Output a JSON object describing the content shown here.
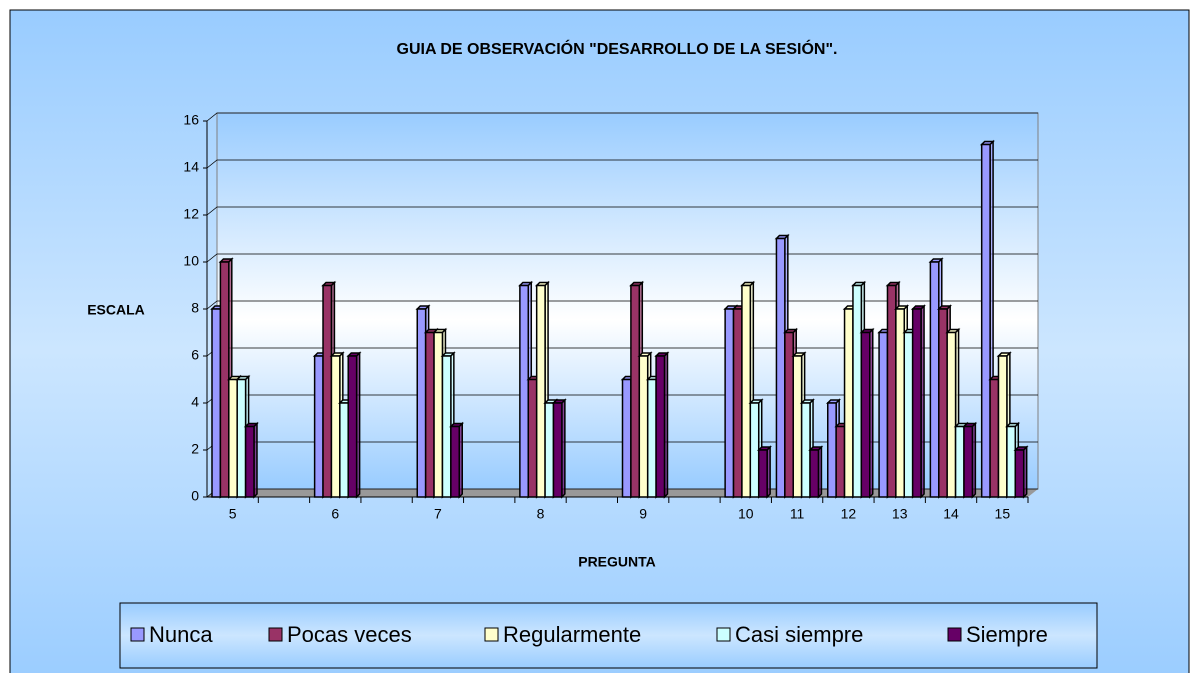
{
  "chart_data": {
    "type": "bar",
    "title": "GUIA DE OBSERVACIÓN  \"DESARROLLO DE LA SESIÓN\".",
    "y_label": "ESCALA",
    "x_label": "PREGUNTA",
    "categories": [
      "5",
      null,
      "6",
      null,
      "7",
      null,
      "8",
      null,
      "9",
      null,
      "10",
      "11",
      "12",
      "13",
      "14",
      "15"
    ],
    "series": [
      {
        "name": "Nunca",
        "color": "#9999ff",
        "values": [
          8,
          null,
          6,
          null,
          8,
          null,
          9,
          null,
          5,
          null,
          8,
          11,
          4,
          7,
          10,
          15
        ]
      },
      {
        "name": "Pocas veces",
        "color": "#993366",
        "values": [
          10,
          null,
          9,
          null,
          7,
          null,
          5,
          null,
          9,
          null,
          8,
          7,
          3,
          9,
          8,
          5
        ]
      },
      {
        "name": "Regularmente",
        "color": "#ffffcc",
        "values": [
          5,
          null,
          6,
          null,
          7,
          null,
          9,
          null,
          6,
          null,
          9,
          6,
          8,
          8,
          7,
          6
        ]
      },
      {
        "name": "Casi siempre",
        "color": "#ccffff",
        "values": [
          5,
          null,
          4,
          null,
          6,
          null,
          4,
          null,
          5,
          null,
          4,
          4,
          9,
          7,
          3,
          3
        ]
      },
      {
        "name": "Siempre",
        "color": "#660066",
        "values": [
          3,
          null,
          6,
          null,
          3,
          null,
          4,
          null,
          6,
          null,
          2,
          2,
          7,
          8,
          3,
          2
        ]
      }
    ],
    "ylim": [
      0,
      16
    ],
    "yticks": [
      0,
      2,
      4,
      6,
      8,
      10,
      12,
      14,
      16
    ],
    "grid": true,
    "legend": "bottom"
  }
}
